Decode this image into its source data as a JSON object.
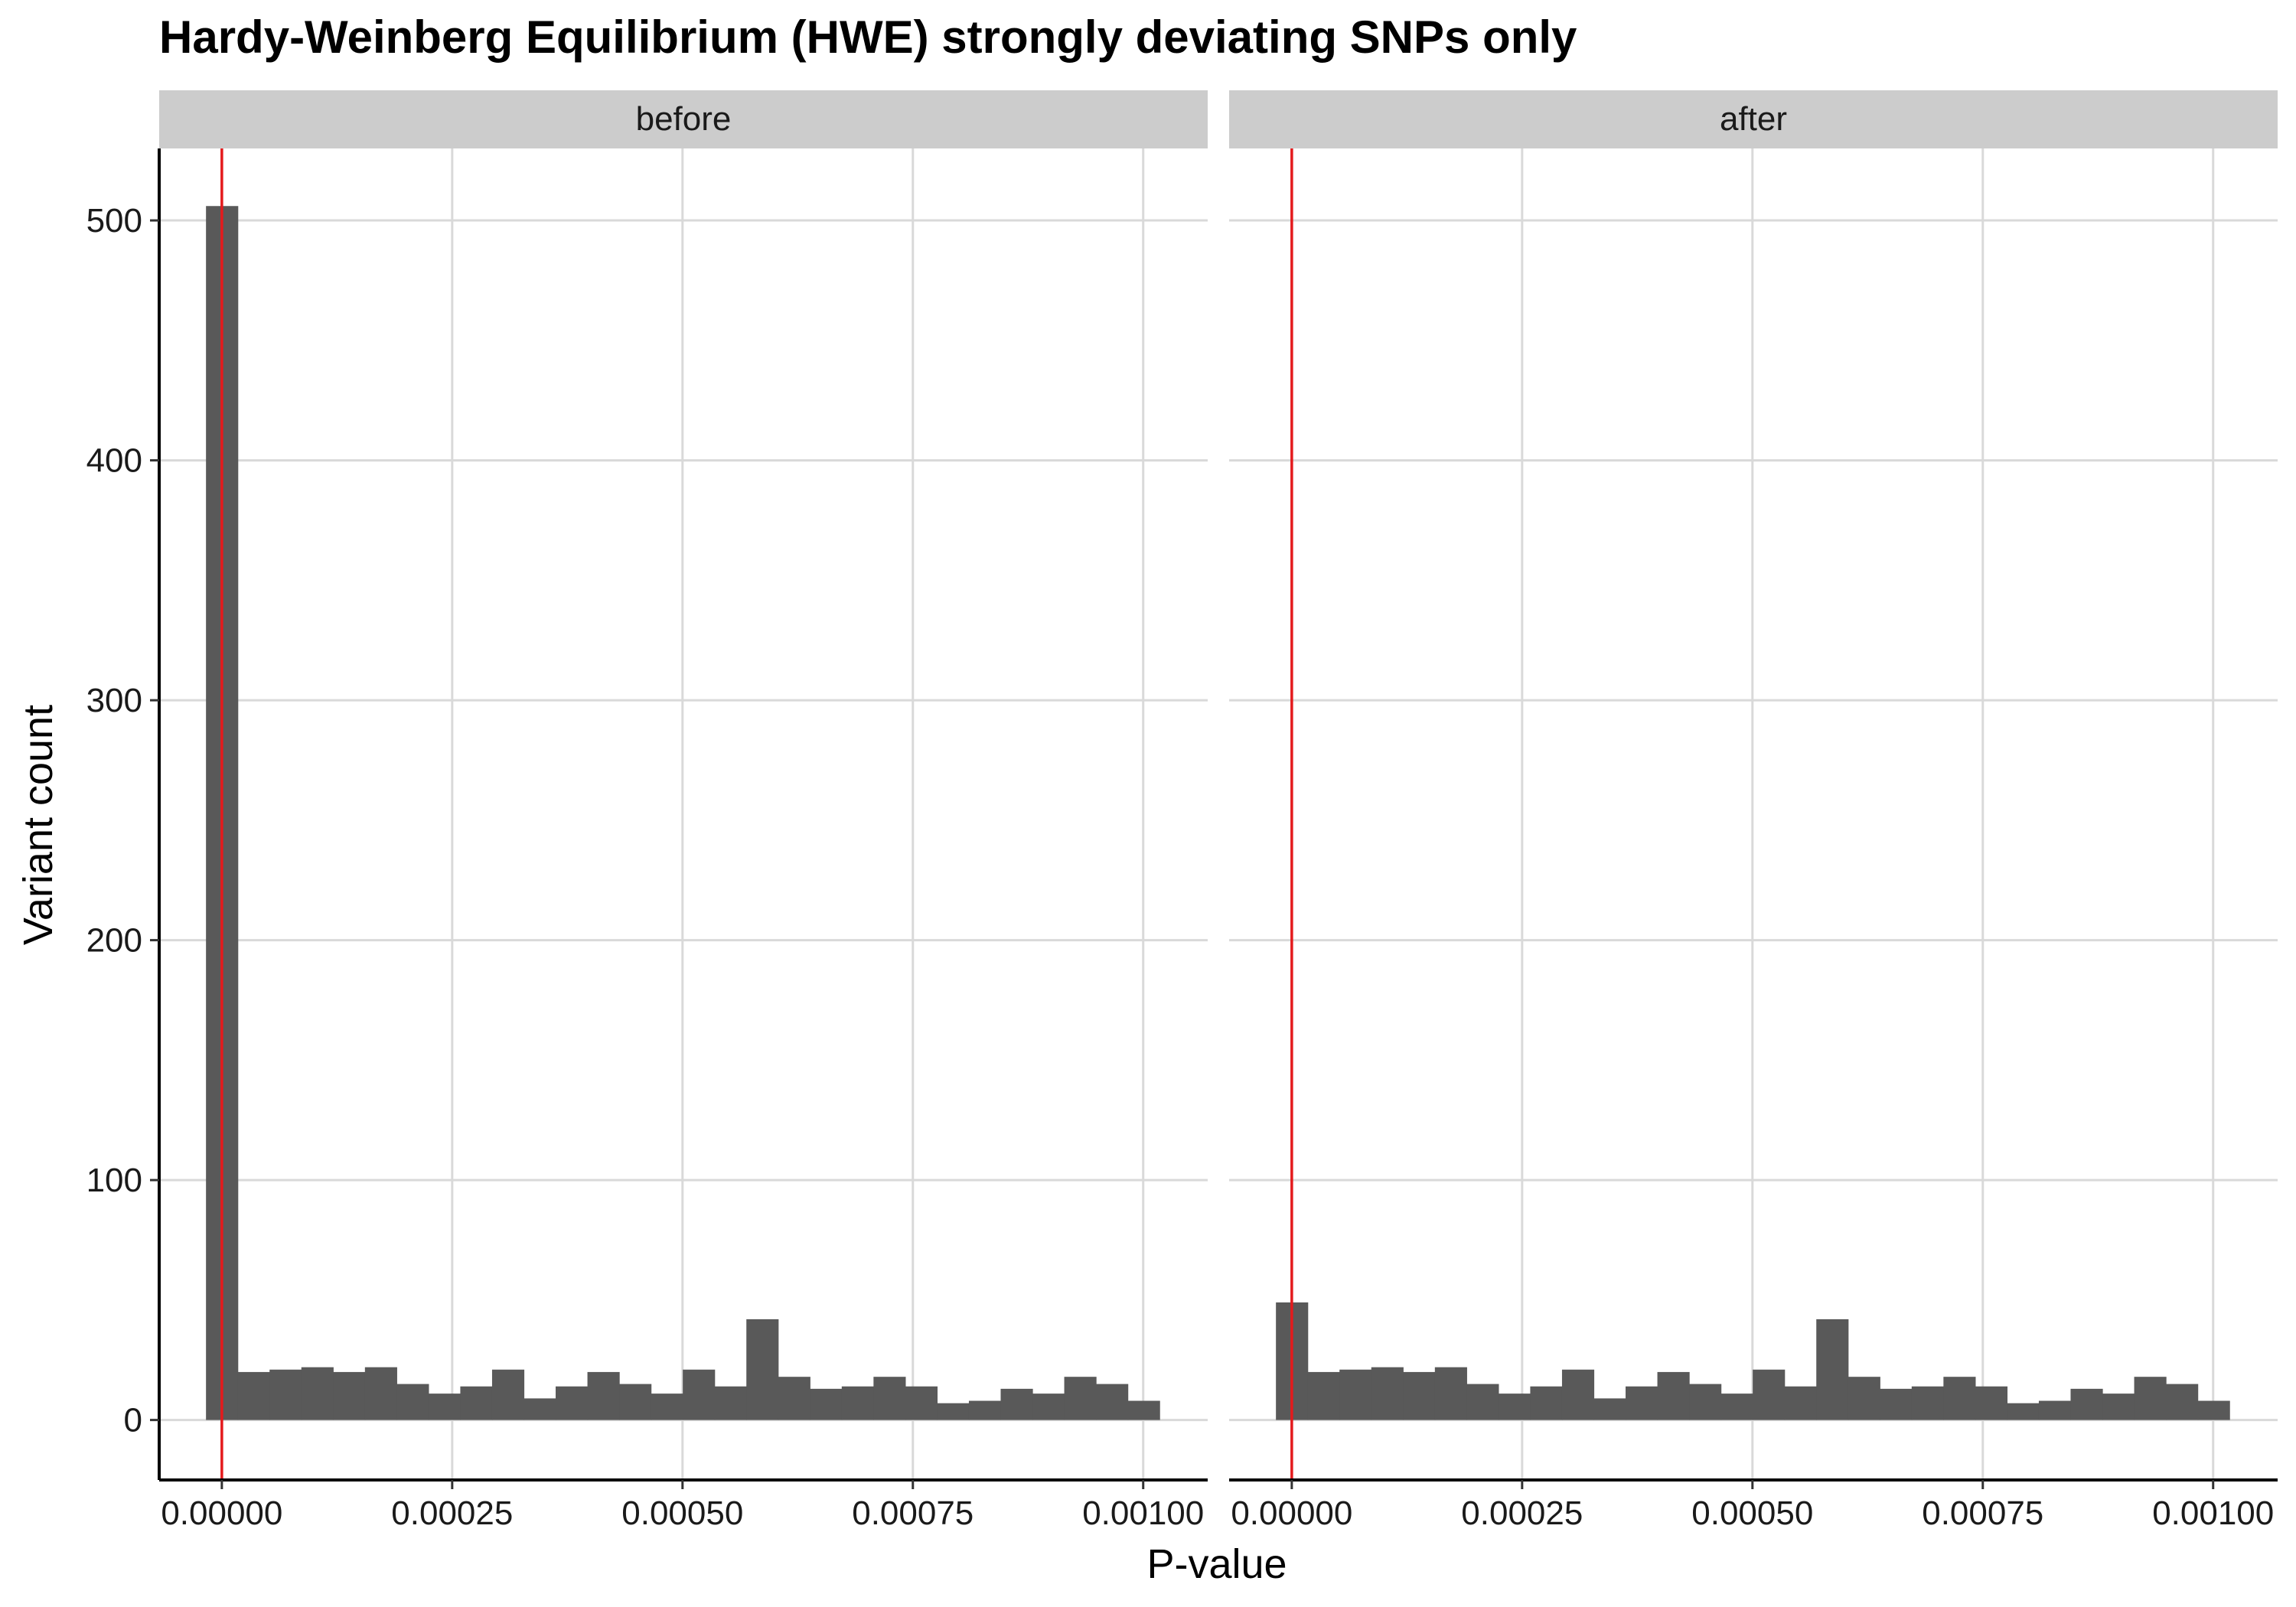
{
  "chart_data": {
    "type": "bar",
    "title": "Hardy-Weinberg Equilibrium (HWE)  strongly deviating SNPs only",
    "xlabel": "P-value",
    "ylabel": "Variant count",
    "xlim": [
      -6.8e-05,
      0.00107
    ],
    "ylim": [
      -25,
      530
    ],
    "x_ticks": [
      0.0,
      0.00025,
      0.0005,
      0.00075,
      0.001
    ],
    "x_tick_labels": [
      "0.00000",
      "0.00025",
      "0.00050",
      "0.00075",
      "0.00100"
    ],
    "y_ticks": [
      0,
      100,
      200,
      300,
      400,
      500
    ],
    "y_tick_labels": [
      "0",
      "100",
      "200",
      "300",
      "400",
      "500"
    ],
    "bin_start": -1.72e-05,
    "bin_width": 3.45e-05,
    "reference_line_x": 0.0,
    "reference_line_color": "#e41a1c",
    "bar_color": "#595959",
    "grid": true,
    "panels": [
      {
        "label": "before",
        "values": [
          506,
          20,
          21,
          22,
          20,
          22,
          15,
          11,
          14,
          21,
          9,
          14,
          20,
          15,
          11,
          21,
          14,
          42,
          18,
          13,
          14,
          18,
          14,
          7,
          8,
          13,
          11,
          18,
          15,
          8
        ]
      },
      {
        "label": "after",
        "values": [
          49,
          20,
          21,
          22,
          20,
          22,
          15,
          11,
          14,
          21,
          9,
          14,
          20,
          15,
          11,
          21,
          14,
          42,
          18,
          13,
          14,
          18,
          14,
          7,
          8,
          13,
          11,
          18,
          15,
          8
        ]
      }
    ]
  }
}
